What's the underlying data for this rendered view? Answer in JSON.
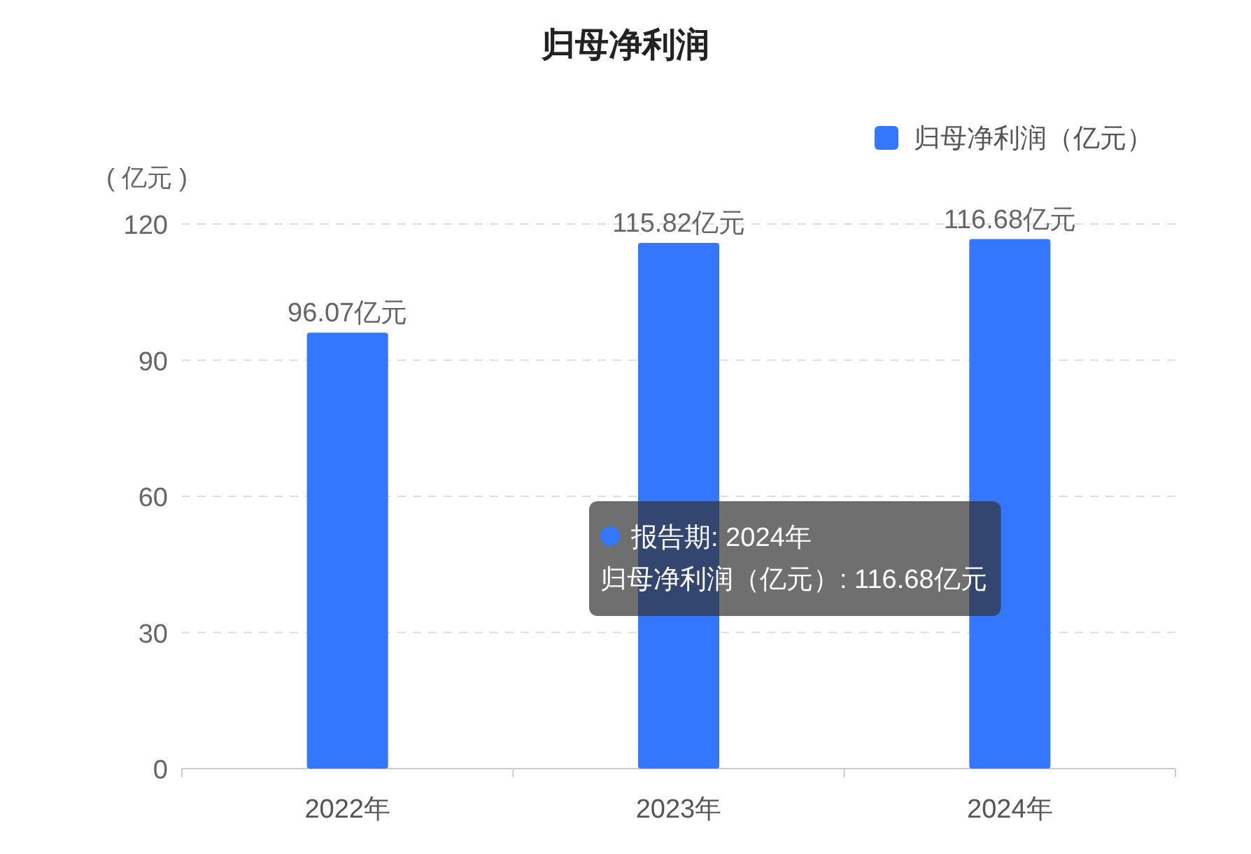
{
  "chart_data": {
    "type": "bar",
    "title": "归母净利润",
    "ylabel": "( 亿元 )",
    "categories": [
      "2022年",
      "2023年",
      "2024年"
    ],
    "series": [
      {
        "name": "归母净利润（亿元）",
        "color": "#3377ff",
        "values": [
          96.07,
          115.82,
          116.68
        ],
        "value_labels": [
          "96.07亿元",
          "115.82亿元",
          "116.68亿元"
        ]
      }
    ],
    "ylim": [
      0,
      120
    ],
    "yticks": [
      0,
      30,
      60,
      90,
      120
    ],
    "grid": "y",
    "legend": "top right",
    "annotations": [
      "报告期: 2024年",
      "归母净利润（亿元）: 116.68亿元"
    ]
  }
}
